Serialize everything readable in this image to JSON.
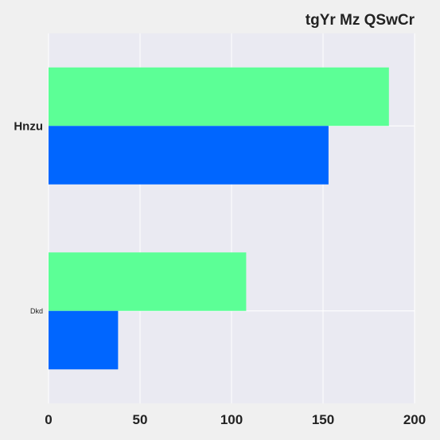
{
  "chart_data": {
    "type": "bar",
    "orientation": "horizontal",
    "title": "tgYr Mz QSwCr",
    "categories": [
      "Hnzu",
      "Dkd"
    ],
    "series": [
      {
        "values": [
          186,
          108
        ],
        "color": "#5cff96"
      },
      {
        "values": [
          153,
          38
        ],
        "color": "#0066ff"
      }
    ],
    "xlim": [
      0,
      200
    ],
    "x_ticks": [
      "0",
      "50",
      "100",
      "150",
      "200"
    ],
    "xlabel": "",
    "ylabel": "",
    "grid": true,
    "legend": "none",
    "colors": {
      "plot_background": "#eaeaf2",
      "page_background": "#f0f0f0",
      "grid": "#ffffff"
    }
  }
}
